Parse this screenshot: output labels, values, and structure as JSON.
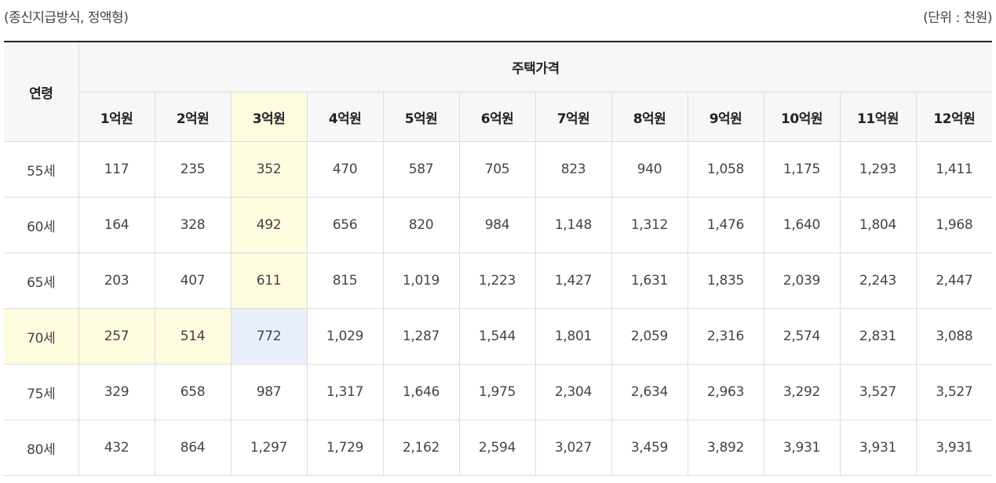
{
  "captions": {
    "left": "(종신지급방식, 정액형)",
    "right": "(단위 : 천원)"
  },
  "table": {
    "age_header": "연령",
    "group_header": "주택가격",
    "price_headers": [
      "1억원",
      "2억원",
      "3억원",
      "4억원",
      "5억원",
      "6억원",
      "7억원",
      "8억원",
      "9억원",
      "10억원",
      "11억원",
      "12억원"
    ],
    "rows": [
      {
        "age": "55세",
        "values": [
          "117",
          "235",
          "352",
          "470",
          "587",
          "705",
          "823",
          "940",
          "1,058",
          "1,175",
          "1,293",
          "1,411"
        ]
      },
      {
        "age": "60세",
        "values": [
          "164",
          "328",
          "492",
          "656",
          "820",
          "984",
          "1,148",
          "1,312",
          "1,476",
          "1,640",
          "1,804",
          "1,968"
        ]
      },
      {
        "age": "65세",
        "values": [
          "203",
          "407",
          "611",
          "815",
          "1,019",
          "1,223",
          "1,427",
          "1,631",
          "1,835",
          "2,039",
          "2,243",
          "2,447"
        ]
      },
      {
        "age": "70세",
        "values": [
          "257",
          "514",
          "772",
          "1,029",
          "1,287",
          "1,544",
          "1,801",
          "2,059",
          "2,316",
          "2,574",
          "2,831",
          "3,088"
        ]
      },
      {
        "age": "75세",
        "values": [
          "329",
          "658",
          "987",
          "1,317",
          "1,646",
          "1,975",
          "2,304",
          "2,634",
          "2,963",
          "3,292",
          "3,527",
          "3,527"
        ]
      },
      {
        "age": "80세",
        "values": [
          "432",
          "864",
          "1,297",
          "1,729",
          "2,162",
          "2,594",
          "3,027",
          "3,459",
          "3,892",
          "3,931",
          "3,931",
          "3,931"
        ]
      }
    ]
  },
  "colors": {
    "highlight_yellow": "#fffbdf",
    "highlight_blue": "#e9effb",
    "header_bg": "#f7f7f7",
    "top_border": "#222222"
  }
}
